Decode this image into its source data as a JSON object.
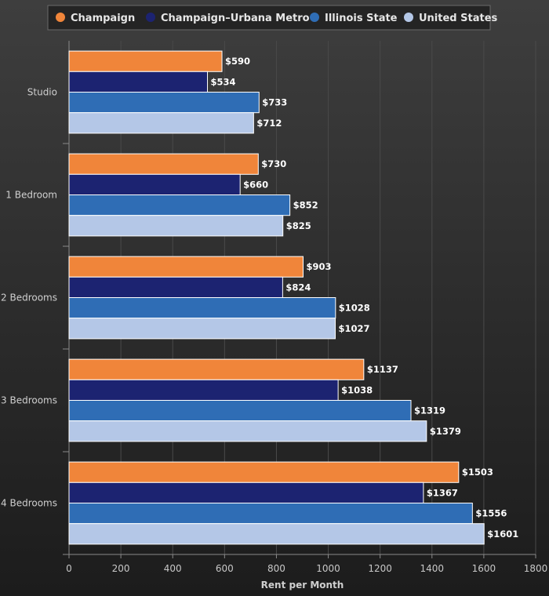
{
  "chart_data": {
    "type": "bar",
    "orientation": "horizontal",
    "categories": [
      "Studio",
      "1 Bedroom",
      "2 Bedrooms",
      "3 Bedrooms",
      "4 Bedrooms"
    ],
    "series": [
      {
        "name": "Champaign",
        "color": "#f0853a",
        "values": [
          590,
          730,
          903,
          1137,
          1503
        ]
      },
      {
        "name": "Champaign–Urbana Metro",
        "color": "#1c2371",
        "values": [
          534,
          660,
          824,
          1038,
          1367
        ]
      },
      {
        "name": "Illinois State",
        "color": "#2f6db5",
        "values": [
          733,
          852,
          1028,
          1319,
          1556
        ]
      },
      {
        "name": "United States",
        "color": "#b4c7e7",
        "values": [
          712,
          825,
          1027,
          1379,
          1601
        ]
      }
    ],
    "value_prefix": "$",
    "xlabel": "Rent per Month",
    "ylabel": "",
    "xlim": [
      0,
      1800
    ],
    "xticks": [
      0,
      200,
      400,
      600,
      800,
      1000,
      1200,
      1400,
      1600,
      1800
    ],
    "grid": true,
    "legend_position": "top"
  }
}
